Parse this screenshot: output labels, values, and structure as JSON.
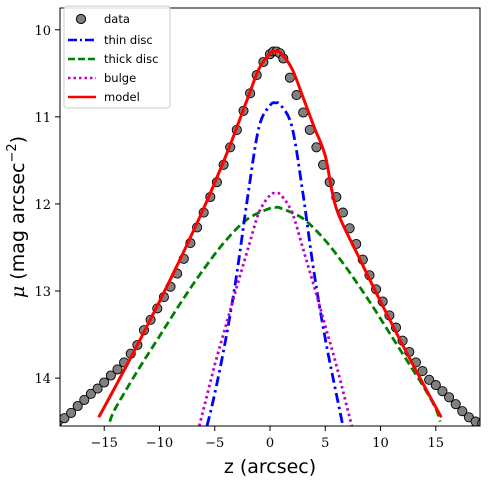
{
  "chart_data": {
    "type": "line",
    "xlabel": "z (arcsec)",
    "ylabel_symbol": "μ",
    "ylabel_text": "(mag arcsec",
    "ylabel_exp": "−2",
    "ylabel_close": ")",
    "xlim": [
      -19,
      19
    ],
    "ylim": [
      14.55,
      9.75
    ],
    "y_inverted": true,
    "xticks": [
      -15,
      -10,
      -5,
      0,
      5,
      10,
      15
    ],
    "xtick_labels": [
      "−15",
      "−10",
      "−5",
      "0",
      "5",
      "10",
      "15"
    ],
    "yticks": [
      10,
      11,
      12,
      13,
      14
    ],
    "ytick_labels": [
      "10",
      "11",
      "12",
      "13",
      "14"
    ],
    "legend_placement": "top-left",
    "grid": false,
    "colors": {
      "data_face": "#808080",
      "data_edge": "#000000",
      "thin": "#0000ff",
      "thick": "#008000",
      "bulge": "#c000c0",
      "model": "#ff0000"
    },
    "series": [
      {
        "key": "data",
        "name": "data",
        "style": "markers"
      },
      {
        "key": "thin",
        "name": "thin disc",
        "style": "dashdot",
        "x": [
          -5.7,
          -5,
          -4,
          -3,
          -2,
          -1,
          0,
          0.5,
          1,
          2,
          3,
          4,
          5,
          6,
          6.6
        ],
        "y": [
          14.55,
          14.18,
          13.55,
          12.8,
          11.9,
          11.12,
          10.87,
          10.84,
          10.87,
          11.12,
          11.9,
          12.8,
          13.55,
          14.18,
          14.55
        ]
      },
      {
        "key": "thick",
        "name": "thick disc",
        "style": "dashed",
        "x": [
          -14.5,
          -14,
          -12,
          -10,
          -8,
          -6,
          -4,
          -2,
          0,
          0.5,
          1,
          3,
          5,
          7,
          9,
          11,
          13,
          14,
          15,
          15.4
        ],
        "y": [
          14.5,
          14.35,
          13.92,
          13.52,
          13.12,
          12.75,
          12.42,
          12.17,
          12.05,
          12.04,
          12.05,
          12.17,
          12.42,
          12.75,
          13.12,
          13.52,
          13.92,
          14.12,
          14.35,
          14.5
        ]
      },
      {
        "key": "bulge",
        "name": "bulge",
        "style": "dotted",
        "x": [
          -6.4,
          -6,
          -5,
          -4,
          -3,
          -2,
          -1,
          0,
          0.5,
          1,
          2,
          3,
          4,
          5,
          6,
          7,
          7.4
        ],
        "y": [
          14.55,
          14.35,
          13.85,
          13.4,
          12.95,
          12.52,
          12.1,
          11.9,
          11.88,
          11.9,
          12.1,
          12.52,
          12.95,
          13.4,
          13.85,
          14.35,
          14.55
        ]
      },
      {
        "key": "model",
        "name": "model",
        "style": "solid",
        "x": [
          -15.5,
          -14,
          -12,
          -10,
          -8,
          -6,
          -4,
          -3,
          -2,
          -1,
          0,
          0.5,
          1,
          2,
          3,
          4,
          5,
          6,
          8,
          10,
          12,
          14,
          15.5
        ],
        "y": [
          14.45,
          14.1,
          13.62,
          13.12,
          12.6,
          12.05,
          11.45,
          11.12,
          10.78,
          10.45,
          10.27,
          10.25,
          10.27,
          10.45,
          10.78,
          11.12,
          11.45,
          12.05,
          12.6,
          13.12,
          13.62,
          14.1,
          14.45
        ]
      }
    ],
    "data_points": {
      "x": [
        -19.2,
        -18.6,
        -18.0,
        -17.4,
        -16.8,
        -16.2,
        -15.6,
        -15.0,
        -14.4,
        -13.8,
        -13.2,
        -12.6,
        -12.0,
        -11.4,
        -10.8,
        -10.2,
        -9.6,
        -9.0,
        -8.4,
        -7.8,
        -7.2,
        -6.6,
        -6.0,
        -5.4,
        -4.8,
        -4.2,
        -3.6,
        -3.0,
        -2.4,
        -1.8,
        -1.2,
        -0.6,
        0.0,
        0.3,
        0.6,
        0.9,
        1.2,
        1.8,
        2.4,
        3.0,
        3.6,
        4.2,
        4.8,
        5.4,
        6.0,
        6.6,
        7.2,
        7.8,
        8.4,
        9.0,
        9.6,
        10.2,
        10.8,
        11.4,
        12.0,
        12.6,
        13.2,
        13.8,
        14.4,
        15.0,
        15.6,
        16.2,
        16.8,
        17.4,
        18.0,
        18.6,
        19.2
      ],
      "y": [
        14.5,
        14.46,
        14.4,
        14.32,
        14.25,
        14.18,
        14.12,
        14.05,
        13.97,
        13.9,
        13.82,
        13.72,
        13.62,
        13.45,
        13.33,
        13.2,
        13.07,
        12.95,
        12.8,
        12.63,
        12.45,
        12.27,
        12.1,
        11.92,
        11.75,
        11.55,
        11.35,
        11.15,
        10.93,
        10.73,
        10.52,
        10.37,
        10.28,
        10.25,
        10.25,
        10.27,
        10.33,
        10.55,
        10.75,
        10.95,
        11.15,
        11.35,
        11.55,
        11.75,
        11.92,
        12.1,
        12.28,
        12.46,
        12.64,
        12.82,
        12.98,
        13.12,
        13.28,
        13.42,
        13.57,
        13.7,
        13.82,
        13.92,
        14.02,
        14.08,
        14.15,
        14.22,
        14.3,
        14.38,
        14.45,
        14.5,
        14.52
      ]
    }
  }
}
